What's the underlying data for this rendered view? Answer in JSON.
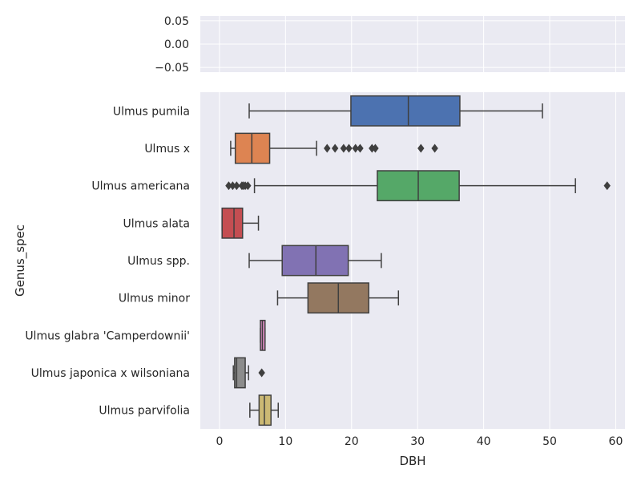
{
  "chart_data": [
    {
      "type": "line",
      "ylim": [
        -0.06,
        0.06
      ],
      "xlim": [
        -2.9,
        61.4
      ],
      "y_ticks": [
        "0.05",
        "0.00",
        "−0.05"
      ],
      "y_tick_values": [
        0.05,
        0.0,
        -0.05
      ],
      "x_tick_values": [
        0,
        10,
        20,
        30,
        40,
        50,
        60
      ],
      "grid": true,
      "series": []
    },
    {
      "type": "box",
      "orientation": "horizontal",
      "xlabel": "DBH",
      "ylabel": "Genus_spec",
      "xlim": [
        -2.9,
        61.4
      ],
      "x_ticks": [
        0,
        10,
        20,
        30,
        40,
        50,
        60
      ],
      "x_tick_labels": [
        "0",
        "10",
        "20",
        "30",
        "40",
        "50",
        "60"
      ],
      "grid": true,
      "categories": [
        "Ulmus pumila",
        "Ulmus x",
        "Ulmus americana",
        "Ulmus alata",
        "Ulmus spp.",
        "Ulmus minor",
        "Ulmus glabra 'Camperdownii'",
        "Ulmus japonica x wilsoniana",
        "Ulmus parvifolia"
      ],
      "boxes": [
        {
          "name": "Ulmus pumila",
          "whislo": 4.5,
          "q1": 19.9,
          "median": 28.6,
          "q3": 36.4,
          "whishi": 48.9,
          "fliers": [],
          "color": "#4c72b0"
        },
        {
          "name": "Ulmus x",
          "whislo": 1.7,
          "q1": 2.4,
          "median": 4.9,
          "q3": 7.6,
          "whishi": 14.7,
          "fliers": [
            16.3,
            17.5,
            18.8,
            19.6,
            20.6,
            21.3,
            23.1,
            23.6,
            30.5,
            32.6
          ],
          "color": "#dd8452"
        },
        {
          "name": "Ulmus americana",
          "whislo": 5.3,
          "q1": 23.9,
          "median": 30.1,
          "q3": 36.3,
          "whishi": 53.9,
          "fliers": [
            1.4,
            2.0,
            2.6,
            3.4,
            3.6,
            3.9,
            4.3,
            58.7
          ],
          "color": "#55a868"
        },
        {
          "name": "Ulmus alata",
          "whislo": 0.4,
          "q1": 0.4,
          "median": 2.2,
          "q3": 3.5,
          "whishi": 5.9,
          "fliers": [],
          "color": "#c44e52"
        },
        {
          "name": "Ulmus spp.",
          "whislo": 4.5,
          "q1": 9.5,
          "median": 14.6,
          "q3": 19.5,
          "whishi": 24.5,
          "fliers": [],
          "color": "#8172b3"
        },
        {
          "name": "Ulmus minor",
          "whislo": 8.8,
          "q1": 13.4,
          "median": 18.0,
          "q3": 22.6,
          "whishi": 27.1,
          "fliers": [],
          "color": "#937860"
        },
        {
          "name": "Ulmus glabra 'Camperdownii'",
          "whislo": 6.2,
          "q1": 6.2,
          "median": 6.5,
          "q3": 6.9,
          "whishi": 6.9,
          "fliers": [],
          "color": "#da8bc3"
        },
        {
          "name": "Ulmus japonica x wilsoniana",
          "whislo": 2.1,
          "q1": 2.3,
          "median": 2.6,
          "q3": 3.9,
          "whishi": 4.4,
          "fliers": [
            6.4
          ],
          "color": "#8c8c8c"
        },
        {
          "name": "Ulmus parvifolia",
          "whislo": 4.6,
          "q1": 6.0,
          "median": 6.8,
          "q3": 7.8,
          "whishi": 8.9,
          "fliers": [],
          "color": "#ccb974"
        }
      ]
    }
  ],
  "colors": {
    "plot_background": "#eaeaf2",
    "grid": "#ffffff",
    "box_line": "#3f3f3f",
    "text": "#262626"
  }
}
